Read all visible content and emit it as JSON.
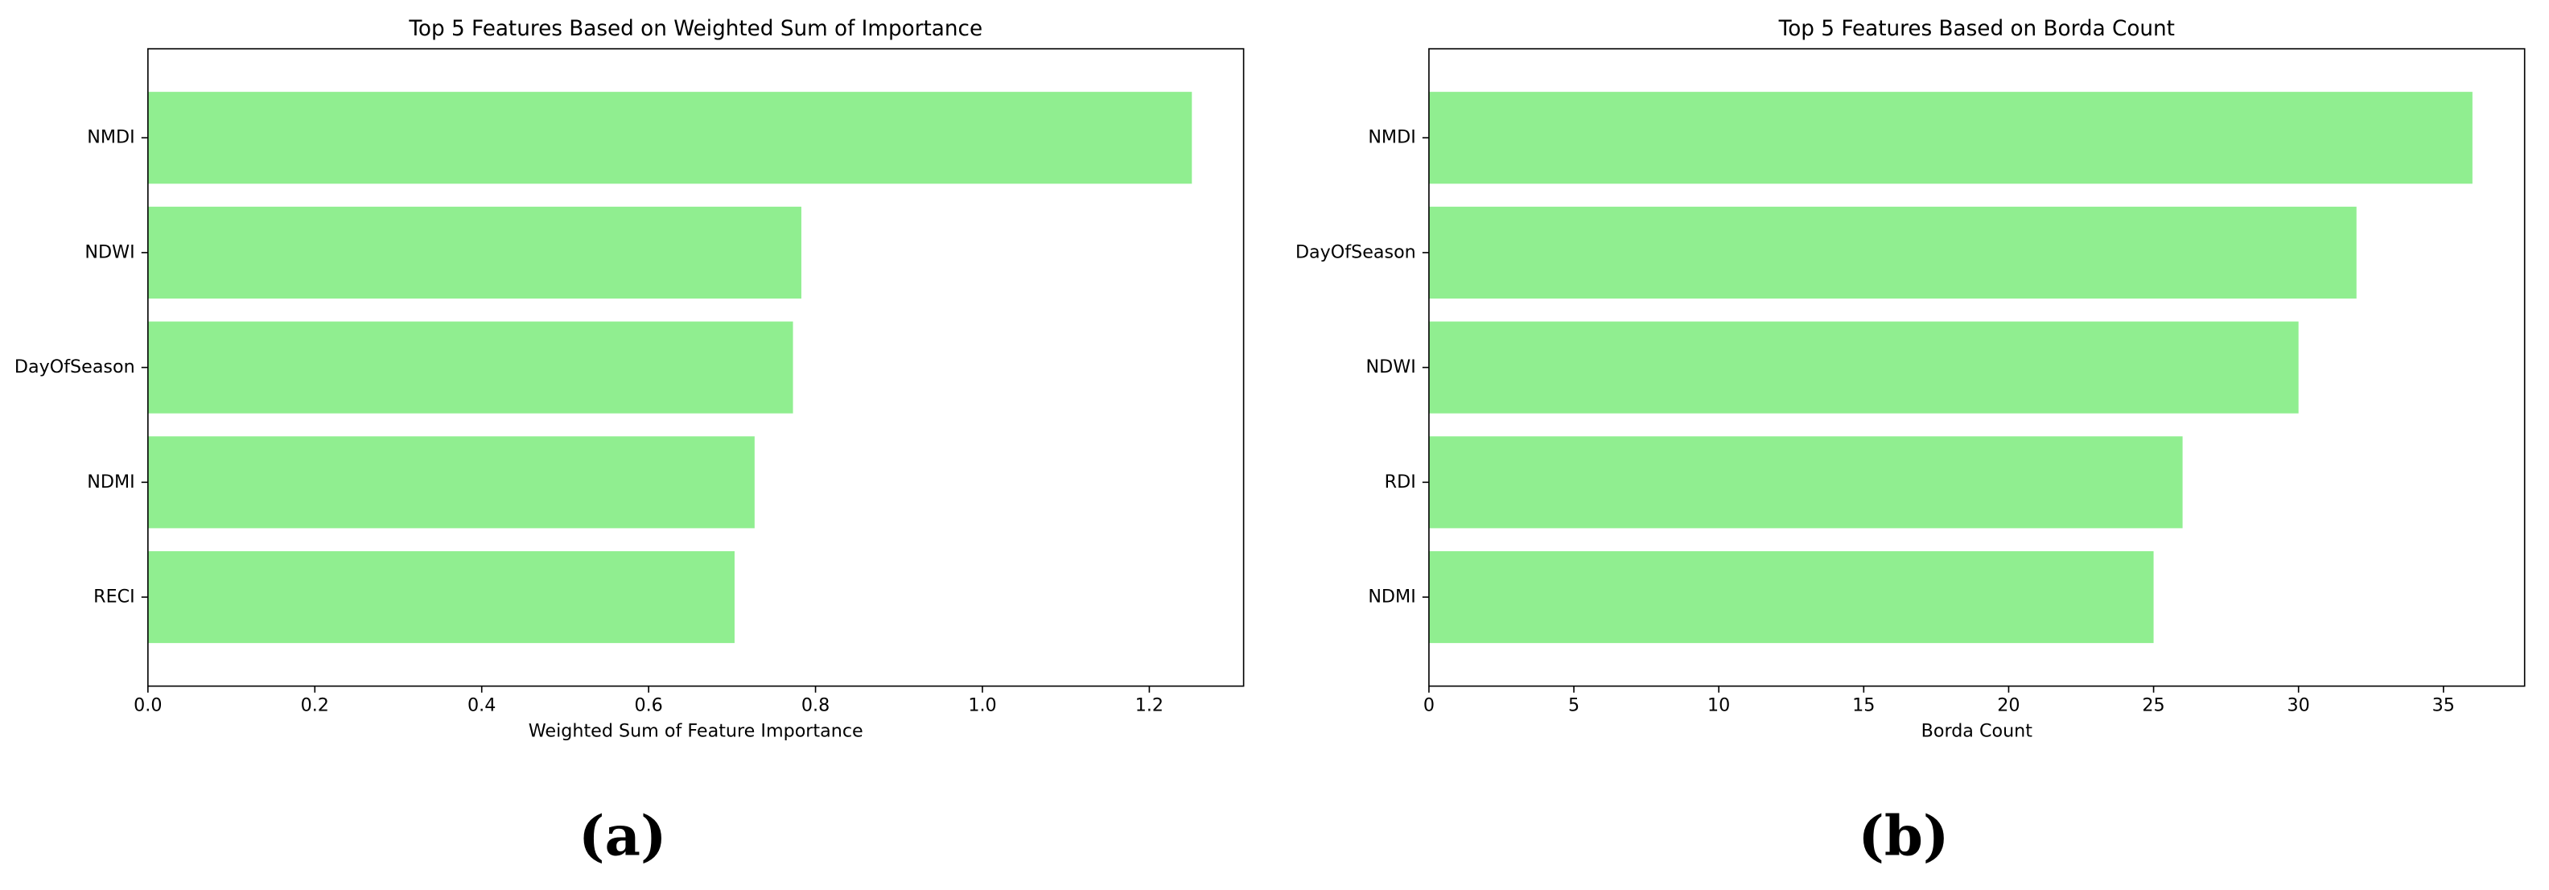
{
  "chart_data": [
    {
      "type": "barh",
      "title": "Top 5 Features Based on Weighted Sum of Importance",
      "xlabel": "Weighted Sum of Feature Importance",
      "caption": "(a)",
      "categories": [
        "NMDI",
        "NDWI",
        "DayOfSeason",
        "NDMI",
        "RECI"
      ],
      "values": [
        1.251,
        0.783,
        0.773,
        0.727,
        0.703
      ],
      "color": "#90ee90",
      "xlim": [
        0,
        1.313
      ],
      "xticks": [
        {
          "value": 0,
          "label": "0.0"
        },
        0.2,
        0.4,
        0.6,
        0.8,
        {
          "value": 1,
          "label": "1.0"
        },
        1.2
      ]
    },
    {
      "type": "barh",
      "title": "Top 5 Features Based on Borda Count",
      "xlabel": "Borda Count",
      "caption": "(b)",
      "categories": [
        "NMDI",
        "DayOfSeason",
        "NDWI",
        "RDI",
        "NDMI"
      ],
      "values": [
        36,
        32,
        30,
        26,
        25
      ],
      "color": "#90ee90",
      "xlim": [
        0,
        37.8
      ],
      "xticks": [
        0,
        5,
        10,
        15,
        20,
        25,
        30,
        35
      ]
    }
  ]
}
